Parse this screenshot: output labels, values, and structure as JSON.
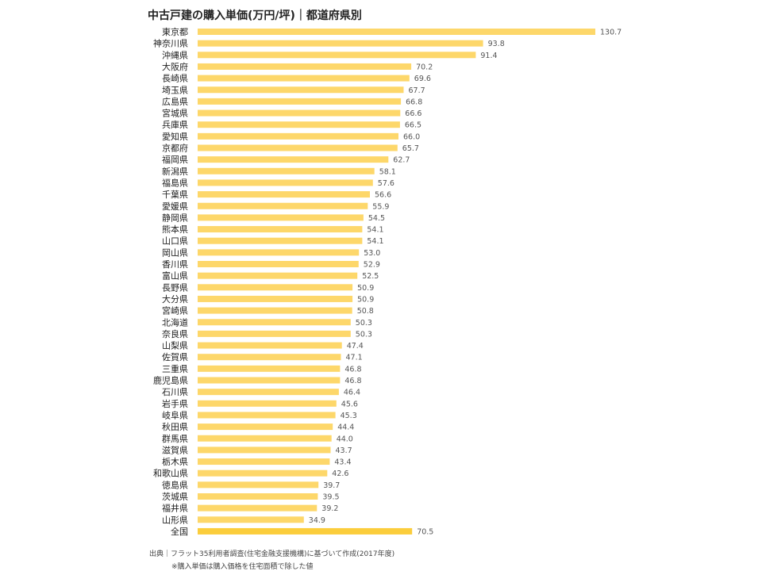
{
  "chart_data": {
    "type": "bar",
    "orientation": "horizontal",
    "title": "中古戸建の購入単価(万円/坪)｜都道府県別",
    "categories": [
      "東京都",
      "神奈川県",
      "沖縄県",
      "大阪府",
      "長崎県",
      "埼玉県",
      "広島県",
      "宮城県",
      "兵庫県",
      "愛知県",
      "京都府",
      "福岡県",
      "新潟県",
      "福島県",
      "千葉県",
      "愛媛県",
      "静岡県",
      "熊本県",
      "山口県",
      "岡山県",
      "香川県",
      "富山県",
      "長野県",
      "大分県",
      "宮崎県",
      "北海道",
      "奈良県",
      "山梨県",
      "佐賀県",
      "三重県",
      "鹿児島県",
      "石川県",
      "岩手県",
      "岐阜県",
      "秋田県",
      "群馬県",
      "滋賀県",
      "栃木県",
      "和歌山県",
      "徳島県",
      "茨城県",
      "福井県",
      "山形県",
      "全国"
    ],
    "values": [
      130.7,
      93.8,
      91.4,
      70.2,
      69.6,
      67.7,
      66.8,
      66.6,
      66.5,
      66.0,
      65.7,
      62.7,
      58.1,
      57.6,
      56.6,
      55.9,
      54.5,
      54.1,
      54.1,
      53.0,
      52.9,
      52.5,
      50.9,
      50.9,
      50.8,
      50.3,
      50.3,
      47.4,
      47.1,
      46.8,
      46.8,
      46.4,
      45.6,
      45.3,
      44.4,
      44.0,
      43.7,
      43.4,
      42.6,
      39.7,
      39.5,
      39.2,
      34.9,
      70.5
    ],
    "value_labels": [
      "130.7",
      "93.8",
      "91.4",
      "70.2",
      "69.6",
      "67.7",
      "66.8",
      "66.6",
      "66.5",
      "66.0",
      "65.7",
      "62.7",
      "58.1",
      "57.6",
      "56.6",
      "55.9",
      "54.5",
      "54.1",
      "54.1",
      "53.0",
      "52.9",
      "52.5",
      "50.9",
      "50.9",
      "50.8",
      "50.3",
      "50.3",
      "47.4",
      "47.1",
      "46.8",
      "46.8",
      "46.4",
      "45.6",
      "45.3",
      "44.4",
      "44.0",
      "43.7",
      "43.4",
      "42.6",
      "39.7",
      "39.5",
      "39.2",
      "34.9",
      "70.5"
    ],
    "xlim": [
      0,
      130.7
    ],
    "grid": false,
    "legend": "none",
    "colors": {
      "bar": "#fdd76a",
      "total_bar": "#fbcd3c",
      "label": "#222222",
      "value": "#555555"
    }
  },
  "footnote": {
    "source": "出典｜フラット35利用者調査(住宅金融支援機構)に基づいて作成(2017年度)",
    "note": "※購入単価は購入価格を住宅面積で除した値"
  }
}
